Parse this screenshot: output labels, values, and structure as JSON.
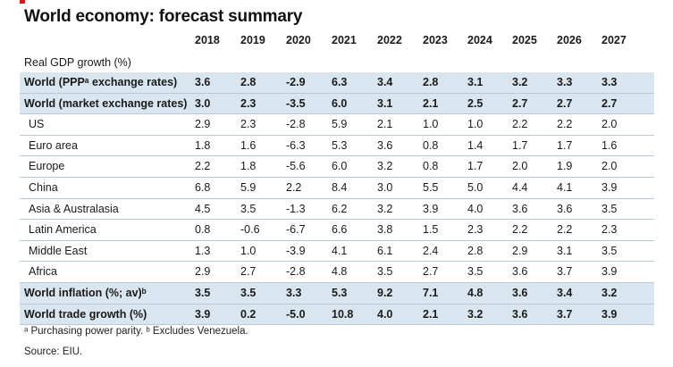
{
  "title": "World economy: forecast summary",
  "years": [
    "2018",
    "2019",
    "2020",
    "2021",
    "2022",
    "2023",
    "2024",
    "2025",
    "2026",
    "2027"
  ],
  "section_label": "Real GDP growth (%)",
  "rows": [
    {
      "label": "World (PPPᵃ exchange rates)",
      "values": [
        "3.6",
        "2.8",
        "-2.9",
        "6.3",
        "3.4",
        "2.8",
        "3.1",
        "3.2",
        "3.3",
        "3.3"
      ]
    },
    {
      "label": "World (market exchange rates)",
      "values": [
        "3.0",
        "2.3",
        "-3.5",
        "6.0",
        "3.1",
        "2.1",
        "2.5",
        "2.7",
        "2.7",
        "2.7"
      ]
    },
    {
      "label": "US",
      "values": [
        "2.9",
        "2.3",
        "-2.8",
        "5.9",
        "2.1",
        "1.0",
        "1.0",
        "2.2",
        "2.2",
        "2.0"
      ]
    },
    {
      "label": "Euro area",
      "values": [
        "1.8",
        "1.6",
        "-6.3",
        "5.3",
        "3.6",
        "0.8",
        "1.4",
        "1.7",
        "1.7",
        "1.6"
      ]
    },
    {
      "label": "Europe",
      "values": [
        "2.2",
        "1.8",
        "-5.6",
        "6.0",
        "3.2",
        "0.8",
        "1.7",
        "2.0",
        "1.9",
        "2.0"
      ]
    },
    {
      "label": "China",
      "values": [
        "6.8",
        "5.9",
        "2.2",
        "8.4",
        "3.0",
        "5.5",
        "5.0",
        "4.4",
        "4.1",
        "3.9"
      ]
    },
    {
      "label": "Asia & Australasia",
      "values": [
        "4.5",
        "3.5",
        "-1.3",
        "6.2",
        "3.2",
        "3.9",
        "4.0",
        "3.6",
        "3.6",
        "3.5"
      ]
    },
    {
      "label": "Latin America",
      "values": [
        "0.8",
        "-0.6",
        "-6.7",
        "6.6",
        "3.8",
        "1.5",
        "2.3",
        "2.2",
        "2.2",
        "2.3"
      ]
    },
    {
      "label": "Middle East",
      "values": [
        "1.3",
        "1.0",
        "-3.9",
        "4.1",
        "6.1",
        "2.4",
        "2.8",
        "2.9",
        "3.1",
        "3.5"
      ]
    },
    {
      "label": "Africa",
      "values": [
        "2.9",
        "2.7",
        "-2.8",
        "4.8",
        "3.5",
        "2.7",
        "3.5",
        "3.6",
        "3.7",
        "3.9"
      ]
    },
    {
      "label": "World inflation (%; av)ᵇ",
      "values": [
        "3.5",
        "3.5",
        "3.3",
        "5.3",
        "9.2",
        "7.1",
        "4.8",
        "3.6",
        "3.4",
        "3.2"
      ]
    },
    {
      "label": "World trade growth (%)",
      "values": [
        "3.9",
        "0.2",
        "-5.0",
        "10.8",
        "4.0",
        "2.1",
        "3.2",
        "3.6",
        "3.7",
        "3.9"
      ]
    }
  ],
  "footnote": "ᵃ Purchasing power parity. ᵇ Excludes Venezuela.",
  "source": "Source: EIU."
}
